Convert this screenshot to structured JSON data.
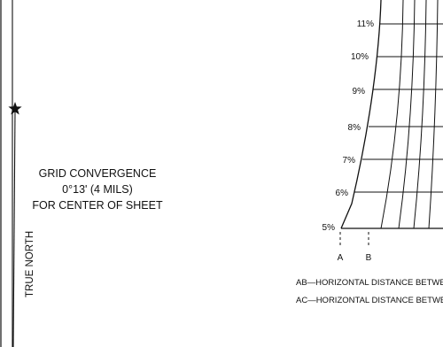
{
  "true_north_label": "TRUE NORTH",
  "star_icon": "star-icon",
  "grid_convergence": {
    "line1": "GRID  CONVERGENCE",
    "line2": "0°13'  (4  MILS)",
    "line3": "FOR  CENTER  OF  SHEET"
  },
  "slope_scale": {
    "labels": [
      "11%",
      "10%",
      "9%",
      "8%",
      "7%",
      "6%",
      "5%"
    ],
    "point_a": "A",
    "point_b": "B"
  },
  "footnotes": {
    "ab": "AB—HORIZONTAL  DISTANCE  BETWEI",
    "ac": "AC—HORIZONTAL  DISTANCE  BETWEI"
  },
  "colors": {
    "ink": "#111111",
    "paper": "#ffffff"
  }
}
